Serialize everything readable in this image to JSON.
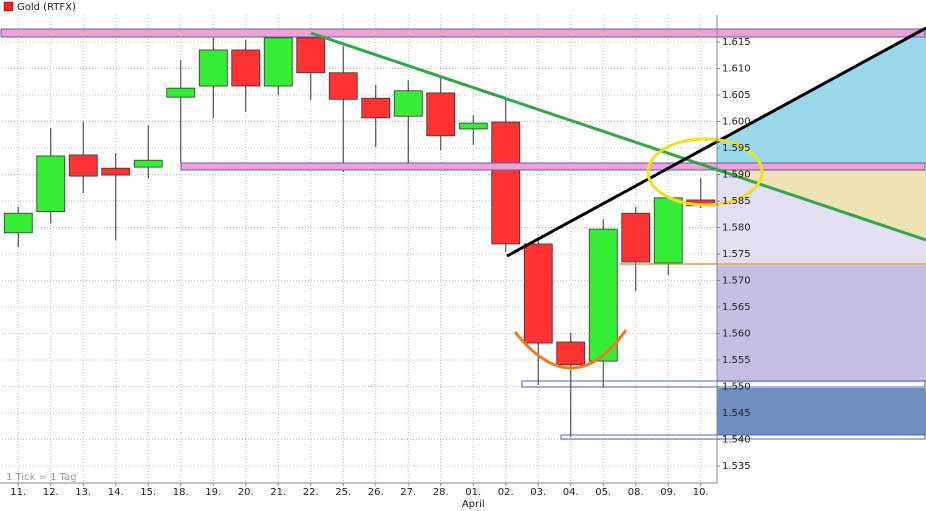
{
  "chart_data": {
    "type": "candlestick",
    "legend": {
      "label": "Gold (RTFX)",
      "color": "#ee2222"
    },
    "footnote": "1 Tick = 1 Tag",
    "month_label": "April",
    "categories": [
      "11.",
      "12.",
      "13.",
      "14.",
      "15.",
      "18.",
      "19.",
      "20.",
      "21.",
      "22.",
      "25.",
      "26.",
      "27.",
      "28.",
      "01.",
      "02.",
      "03.",
      "04.",
      "05.",
      "08.",
      "09.",
      "10."
    ],
    "open": [
      1.579,
      1.583,
      1.5937,
      1.5912,
      1.5914,
      1.6046,
      1.6067,
      1.6135,
      1.6067,
      1.6158,
      1.6092,
      1.6044,
      1.601,
      1.6054,
      1.5986,
      1.5999,
      1.5769,
      1.5584,
      1.5548,
      1.5827,
      1.5733,
      1.5852
    ],
    "high": [
      1.5839,
      1.5988,
      1.6,
      1.594,
      1.5993,
      1.6116,
      1.6158,
      1.6154,
      1.6173,
      1.6173,
      1.6142,
      1.6069,
      1.6078,
      1.6082,
      1.6012,
      1.6041,
      1.5775,
      1.5601,
      1.5816,
      1.5839,
      1.5858,
      1.5893
    ],
    "low": [
      1.5763,
      1.5808,
      1.5865,
      1.5776,
      1.5893,
      1.5922,
      1.6007,
      1.6018,
      1.605,
      1.6041,
      1.5905,
      1.5952,
      1.5922,
      1.5946,
      1.5956,
      1.5754,
      1.5503,
      1.5405,
      1.5499,
      1.568,
      1.571,
      1.5837
    ],
    "close": [
      1.5827,
      1.5935,
      1.5897,
      1.5899,
      1.5927,
      1.6063,
      1.6135,
      1.6067,
      1.6158,
      1.6092,
      1.6042,
      1.6007,
      1.6058,
      1.5973,
      1.5997,
      1.5769,
      1.5582,
      1.5541,
      1.5797,
      1.5735,
      1.5856,
      1.5841
    ],
    "up_color": "#33ee33",
    "down_color": "#ff3333",
    "ylim": [
      1.5318,
      1.6201
    ],
    "yticks": [
      1.535,
      {
        "value": 1.54,
        "label": "1.540"
      },
      1.545,
      {
        "value": 1.55,
        "label": "1.550"
      },
      1.555,
      {
        "value": 1.56,
        "label": "1.560"
      },
      1.565,
      {
        "value": 1.57,
        "label": "1.570"
      },
      1.575,
      {
        "value": 1.58,
        "label": "1.580"
      },
      1.585,
      {
        "value": 1.59,
        "label": "1.590"
      },
      1.595,
      {
        "value": 1.6,
        "label": "1.600"
      },
      1.605,
      {
        "value": 1.61,
        "label": "1.610"
      },
      1.615
    ],
    "grid": true
  }
}
